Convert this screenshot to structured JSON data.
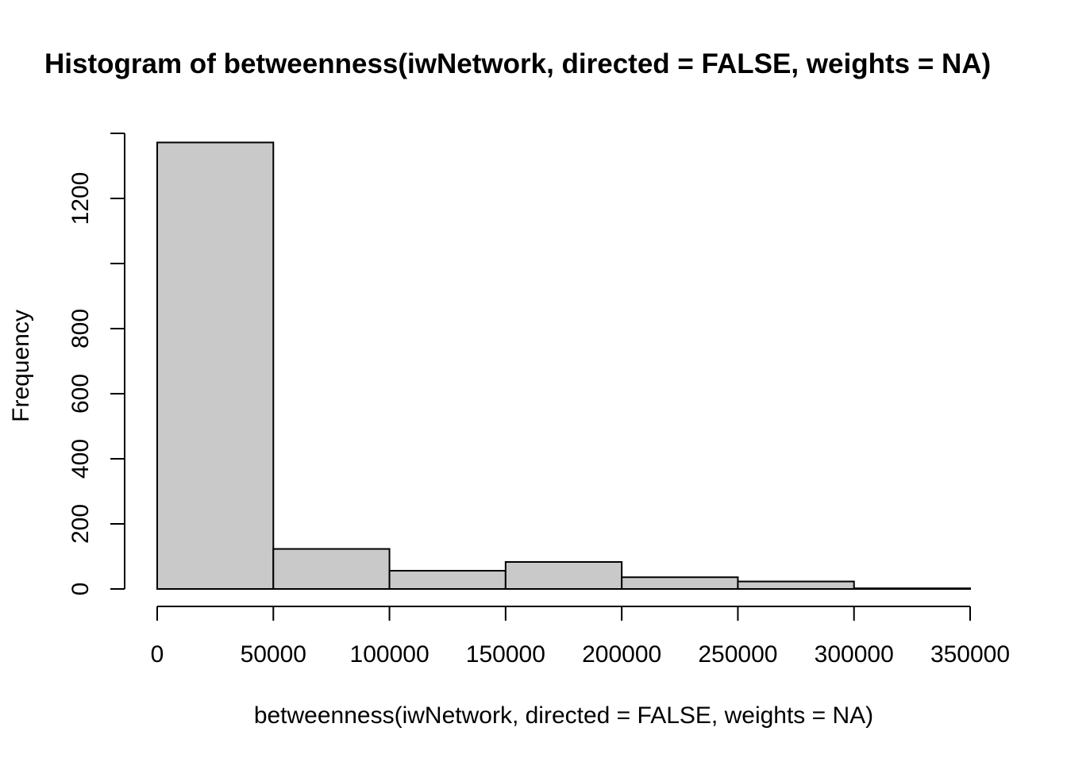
{
  "chart_data": {
    "type": "histogram",
    "title": "Histogram of betweenness(iwNetwork, directed = FALSE, weights = NA)",
    "xlabel": "betweenness(iwNetwork, directed = FALSE, weights = NA)",
    "ylabel": "Frequency",
    "bins": [
      {
        "start": 0,
        "end": 50000,
        "count": 1372
      },
      {
        "start": 50000,
        "end": 100000,
        "count": 123
      },
      {
        "start": 100000,
        "end": 150000,
        "count": 56
      },
      {
        "start": 150000,
        "end": 200000,
        "count": 83
      },
      {
        "start": 200000,
        "end": 250000,
        "count": 36
      },
      {
        "start": 250000,
        "end": 300000,
        "count": 23
      },
      {
        "start": 300000,
        "end": 350000,
        "count": 2
      }
    ],
    "xlim": [
      0,
      350000
    ],
    "ylim": [
      0,
      1400
    ],
    "x_ticks": [
      "0",
      "50000",
      "100000",
      "150000",
      "200000",
      "250000",
      "300000",
      "350000"
    ],
    "y_ticks": [
      0,
      200,
      400,
      600,
      800,
      1000,
      1200,
      1400
    ],
    "y_tick_labels": [
      "0",
      "200",
      "400",
      "600",
      "800",
      "",
      "1200",
      ""
    ],
    "bar_color": "#c9c9c9",
    "grid": false,
    "legend": "none"
  }
}
